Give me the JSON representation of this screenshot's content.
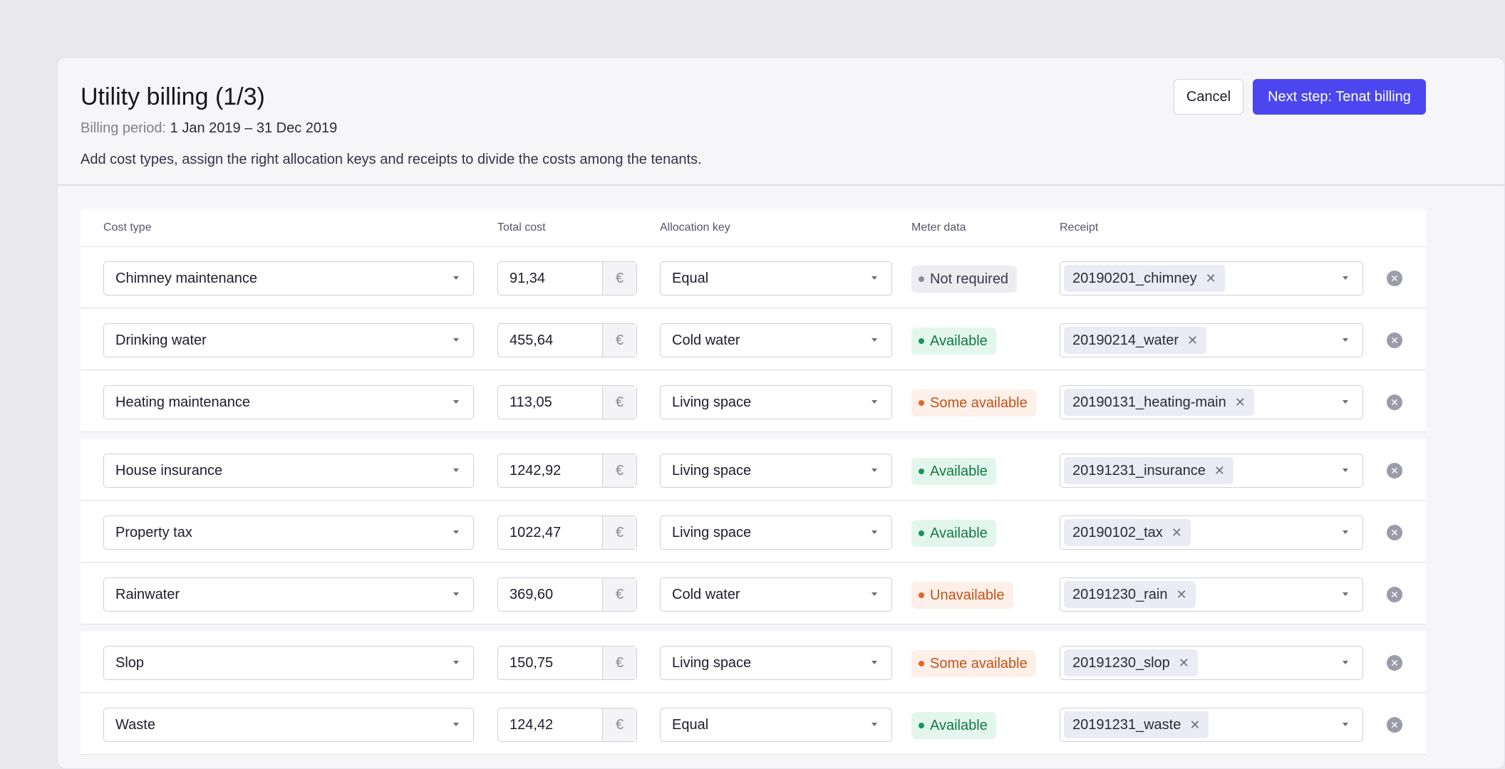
{
  "header": {
    "title": "Utility billing (1/3)",
    "period_label": "Billing period:",
    "period_value": "1 Jan 2019 – 31 Dec 2019",
    "description": "Add cost types, assign the right allocation keys and receipts to divide the costs among the tenants.",
    "cancel_label": "Cancel",
    "next_label": "Next step: Tenat billing"
  },
  "columns": {
    "cost_type": "Cost type",
    "total_cost": "Total cost",
    "allocation_key": "Allocation key",
    "meter_data": "Meter data",
    "receipt": "Receipt"
  },
  "currency": "€",
  "rows": [
    {
      "cost_type": "Chimney maintenance",
      "total": "91,34",
      "key": "Equal",
      "meter": "Not required",
      "meter_status": "grey",
      "receipt": "20190201_chimney"
    },
    {
      "cost_type": "Drinking water",
      "total": "455,64",
      "key": "Cold water",
      "meter": "Available",
      "meter_status": "green",
      "receipt": "20190214_water"
    },
    {
      "cost_type": "Heating maintenance",
      "total": "113,05",
      "key": "Living space",
      "meter": "Some available",
      "meter_status": "orange",
      "receipt": "20190131_heating-main"
    },
    {
      "cost_type": "House insurance",
      "total": "1242,92",
      "key": "Living space",
      "meter": "Available",
      "meter_status": "green",
      "receipt": "20191231_insurance"
    },
    {
      "cost_type": "Property tax",
      "total": "1022,47",
      "key": "Living space",
      "meter": "Available",
      "meter_status": "green",
      "receipt": "20190102_tax"
    },
    {
      "cost_type": "Rainwater",
      "total": "369,60",
      "key": "Cold water",
      "meter": "Unavailable",
      "meter_status": "orange",
      "receipt": "20191230_rain"
    },
    {
      "cost_type": "Slop",
      "total": "150,75",
      "key": "Living space",
      "meter": "Some available",
      "meter_status": "orange",
      "receipt": "20191230_slop"
    },
    {
      "cost_type": "Waste",
      "total": "124,42",
      "key": "Equal",
      "meter": "Available",
      "meter_status": "green",
      "receipt": "20191231_waste"
    }
  ]
}
